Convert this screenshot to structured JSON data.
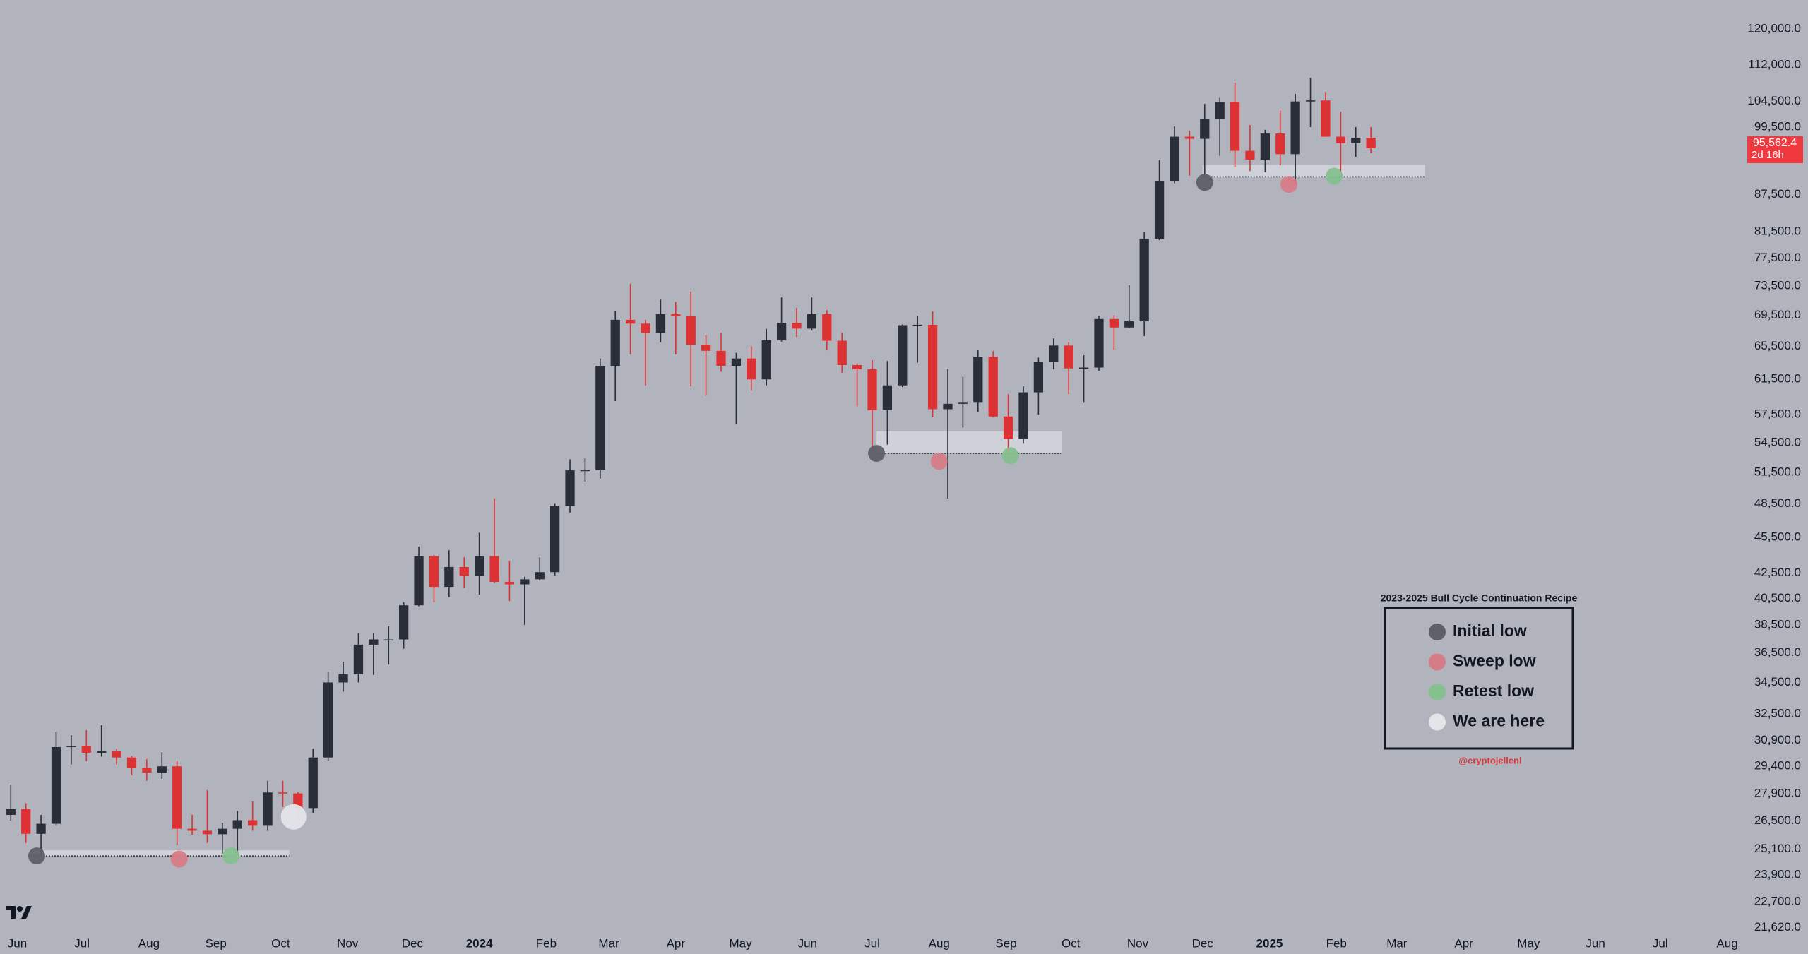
{
  "chart_data": {
    "type": "candlestick",
    "log_scale": true,
    "up_color": "#2a2e39",
    "down_color": "#dd3234",
    "xlim": [
      -8,
      800
    ],
    "ylim": [
      21430,
      126800
    ],
    "xticks": [
      {
        "value": 0,
        "label": "Jun"
      },
      {
        "value": 30,
        "label": "Jul"
      },
      {
        "value": 61,
        "label": "Aug"
      },
      {
        "value": 92,
        "label": "Sep"
      },
      {
        "value": 122,
        "label": "Oct"
      },
      {
        "value": 153,
        "label": "Nov"
      },
      {
        "value": 183,
        "label": "Dec"
      },
      {
        "value": 214,
        "label": "2024"
      },
      {
        "value": 245,
        "label": "Feb"
      },
      {
        "value": 274,
        "label": "Mar"
      },
      {
        "value": 305,
        "label": "Apr"
      },
      {
        "value": 335,
        "label": "May"
      },
      {
        "value": 366,
        "label": "Jun"
      },
      {
        "value": 396,
        "label": "Jul"
      },
      {
        "value": 427,
        "label": "Aug"
      },
      {
        "value": 458,
        "label": "Sep"
      },
      {
        "value": 488,
        "label": "Oct"
      },
      {
        "value": 519,
        "label": "Nov"
      },
      {
        "value": 549,
        "label": "Dec"
      },
      {
        "value": 580,
        "label": "2025"
      },
      {
        "value": 611,
        "label": "Feb"
      },
      {
        "value": 639,
        "label": "Mar"
      },
      {
        "value": 670,
        "label": "Apr"
      },
      {
        "value": 700,
        "label": "May"
      },
      {
        "value": 731,
        "label": "Jun"
      },
      {
        "value": 761,
        "label": "Jul"
      },
      {
        "value": 792,
        "label": "Aug"
      }
    ],
    "yticks": [
      {
        "value": 120000,
        "label": "120,000.0"
      },
      {
        "value": 112000,
        "label": "112,000.0"
      },
      {
        "value": 104500,
        "label": "104,500.0"
      },
      {
        "value": 99500,
        "label": "99,500.0"
      },
      {
        "value": 87500,
        "label": "87,500.0"
      },
      {
        "value": 81500,
        "label": "81,500.0"
      },
      {
        "value": 77500,
        "label": "77,500.0"
      },
      {
        "value": 73500,
        "label": "73,500.0"
      },
      {
        "value": 69500,
        "label": "69,500.0"
      },
      {
        "value": 65500,
        "label": "65,500.0"
      },
      {
        "value": 61500,
        "label": "61,500.0"
      },
      {
        "value": 57500,
        "label": "57,500.0"
      },
      {
        "value": 54500,
        "label": "54,500.0"
      },
      {
        "value": 51500,
        "label": "51,500.0"
      },
      {
        "value": 48500,
        "label": "48,500.0"
      },
      {
        "value": 45500,
        "label": "45,500.0"
      },
      {
        "value": 42500,
        "label": "42,500.0"
      },
      {
        "value": 40500,
        "label": "40,500.0"
      },
      {
        "value": 38500,
        "label": "38,500.0"
      },
      {
        "value": 36500,
        "label": "36,500.0"
      },
      {
        "value": 34500,
        "label": "34,500.0"
      },
      {
        "value": 32500,
        "label": "32,500.0"
      },
      {
        "value": 30900,
        "label": "30,900.0"
      },
      {
        "value": 29400,
        "label": "29,400.0"
      },
      {
        "value": 27900,
        "label": "27,900.0"
      },
      {
        "value": 26500,
        "label": "26,500.0"
      },
      {
        "value": 25100,
        "label": "25,100.0"
      },
      {
        "value": 23900,
        "label": "23,900.0"
      },
      {
        "value": 22700,
        "label": "22,700.0"
      },
      {
        "value": 21620,
        "label": "21,620.0"
      }
    ],
    "x": [
      -3,
      4,
      11,
      18,
      25,
      32,
      39,
      46,
      53,
      60,
      67,
      74,
      81,
      88,
      95,
      102,
      109,
      116,
      123,
      130,
      137,
      144,
      151,
      158,
      165,
      172,
      179,
      186,
      193,
      200,
      207,
      214,
      221,
      228,
      235,
      242,
      249,
      256,
      263,
      270,
      277,
      284,
      291,
      298,
      305,
      312,
      319,
      326,
      333,
      340,
      347,
      354,
      361,
      368,
      375,
      382,
      389,
      396,
      403,
      410,
      417,
      424,
      431,
      438,
      445,
      452,
      459,
      466,
      473,
      480,
      487,
      494,
      501,
      508,
      515,
      522,
      529,
      536,
      543,
      550,
      557,
      564,
      571,
      578,
      585,
      592,
      599,
      606,
      613,
      620,
      627
    ],
    "open": [
      26800,
      27100,
      25850,
      26350,
      30500,
      30580,
      30170,
      30250,
      29900,
      29300,
      29050,
      29400,
      26100,
      26000,
      25830,
      26100,
      26530,
      26250,
      27970,
      27920,
      27150,
      29900,
      34500,
      35050,
      37080,
      37450,
      37450,
      39970,
      43900,
      41400,
      43000,
      42280,
      43900,
      41800,
      41600,
      42000,
      42580,
      48300,
      51700,
      51730,
      63100,
      68900,
      68400,
      67200,
      69650,
      69360,
      65700,
      64940,
      63100,
      64000,
      61500,
      66270,
      68500,
      67750,
      69650,
      66200,
      63200,
      62700,
      58000,
      60800,
      68200,
      68250,
      58100,
      58700,
      58900,
      64200,
      57300,
      54900,
      60000,
      63600,
      65600,
      62800,
      62900,
      69000,
      67900,
      68700,
      80400,
      89800,
      97700,
      97300,
      101100,
      104400,
      95100,
      93500,
      98300,
      94500,
      104500,
      104700,
      97700,
      96500,
      97500
    ],
    "high": [
      28400,
      27400,
      26800,
      31400,
      31200,
      31500,
      31800,
      30400,
      29990,
      29800,
      30200,
      29700,
      26800,
      28100,
      26400,
      27000,
      27500,
      28600,
      28600,
      28000,
      30400,
      35200,
      35900,
      37900,
      37900,
      38400,
      40200,
      44700,
      44000,
      44400,
      43800,
      45900,
      49000,
      43500,
      42200,
      43800,
      48500,
      52800,
      52900,
      64000,
      70100,
      73800,
      68900,
      71600,
      71300,
      72700,
      66900,
      67200,
      64700,
      65500,
      67700,
      71900,
      70500,
      71900,
      70200,
      67200,
      63400,
      63800,
      63700,
      68300,
      69400,
      70000,
      62700,
      61800,
      65000,
      64900,
      59800,
      60700,
      64100,
      66500,
      66000,
      64400,
      69400,
      69500,
      73600,
      81500,
      93400,
      99600,
      98800,
      104000,
      105200,
      108300,
      99900,
      99000,
      102700,
      106000,
      109300,
      106400,
      102500,
      99500,
      99500
    ],
    "low": [
      26500,
      25400,
      24800,
      26250,
      29500,
      29700,
      29950,
      29500,
      28900,
      28600,
      28700,
      25300,
      25800,
      25400,
      24900,
      24950,
      26000,
      26000,
      27200,
      26550,
      26900,
      29700,
      33900,
      34500,
      35000,
      35700,
      36800,
      39900,
      40200,
      40600,
      41300,
      40800,
      41700,
      40300,
      38500,
      41900,
      42300,
      47700,
      50600,
      50900,
      59000,
      64500,
      60800,
      66000,
      64500,
      60700,
      59600,
      62400,
      56500,
      60200,
      60800,
      66100,
      66700,
      67500,
      65000,
      62300,
      58400,
      53500,
      54300,
      60600,
      63500,
      57200,
      49000,
      56100,
      57800,
      57200,
      52500,
      54400,
      57500,
      62700,
      59800,
      58900,
      62500,
      65100,
      67800,
      66800,
      80200,
      89400,
      90700,
      90500,
      94200,
      92200,
      91500,
      91300,
      92500,
      89300,
      99500,
      97700,
      91200,
      94000,
      94700
    ],
    "close": [
      27100,
      25850,
      26350,
      30500,
      30580,
      30170,
      30250,
      29900,
      29300,
      29050,
      29400,
      26100,
      26000,
      25830,
      26100,
      26530,
      26250,
      27970,
      27920,
      27150,
      29900,
      34500,
      35050,
      37080,
      37450,
      37450,
      39970,
      43900,
      41400,
      43000,
      42280,
      43900,
      41800,
      41600,
      42000,
      42580,
      48300,
      51700,
      51730,
      63100,
      68900,
      68400,
      67200,
      69650,
      69360,
      65700,
      64940,
      63100,
      64000,
      61500,
      66270,
      68500,
      67750,
      69650,
      66200,
      63200,
      62700,
      58000,
      60800,
      68200,
      68250,
      58100,
      58700,
      58900,
      64200,
      57300,
      54900,
      60000,
      63600,
      65600,
      62800,
      62900,
      69000,
      67900,
      68700,
      80400,
      89800,
      97700,
      97300,
      101100,
      104400,
      95100,
      93500,
      98300,
      94500,
      104500,
      104700,
      97700,
      96500,
      97500,
      95562.4
    ],
    "last_price": {
      "value": 95562.4,
      "label": "95,562.4"
    },
    "countdown": "2d 16h",
    "zones": [
      {
        "xlim": [
          8,
          126
        ],
        "ylim": [
          24780,
          25050
        ]
      },
      {
        "xlim": [
          398,
          484
        ],
        "ylim": [
          53400,
          55700
        ]
      },
      {
        "xlim": [
          549,
          652
        ],
        "ylim": [
          90500,
          92600
        ]
      }
    ],
    "legend_title": "2023-2025 Bull Cycle Continuation Recipe",
    "credit": "@cryptojellenl",
    "series": [
      {
        "name": "Initial low",
        "color": "#5e6068",
        "x": [
          9,
          398,
          550
        ],
        "values": [
          24780,
          53400,
          89550
        ]
      },
      {
        "name": "Sweep low",
        "color": "#d67c87",
        "x": [
          75,
          427,
          589
        ],
        "values": [
          24630,
          52600,
          89200
        ]
      },
      {
        "name": "Retest low",
        "color": "#86c08f",
        "x": [
          99,
          460,
          610
        ],
        "values": [
          24780,
          53170,
          90600
        ]
      },
      {
        "name": "We are here",
        "color": "#e4e5e9",
        "x": [
          128
        ],
        "values": [
          26700
        ]
      }
    ]
  }
}
